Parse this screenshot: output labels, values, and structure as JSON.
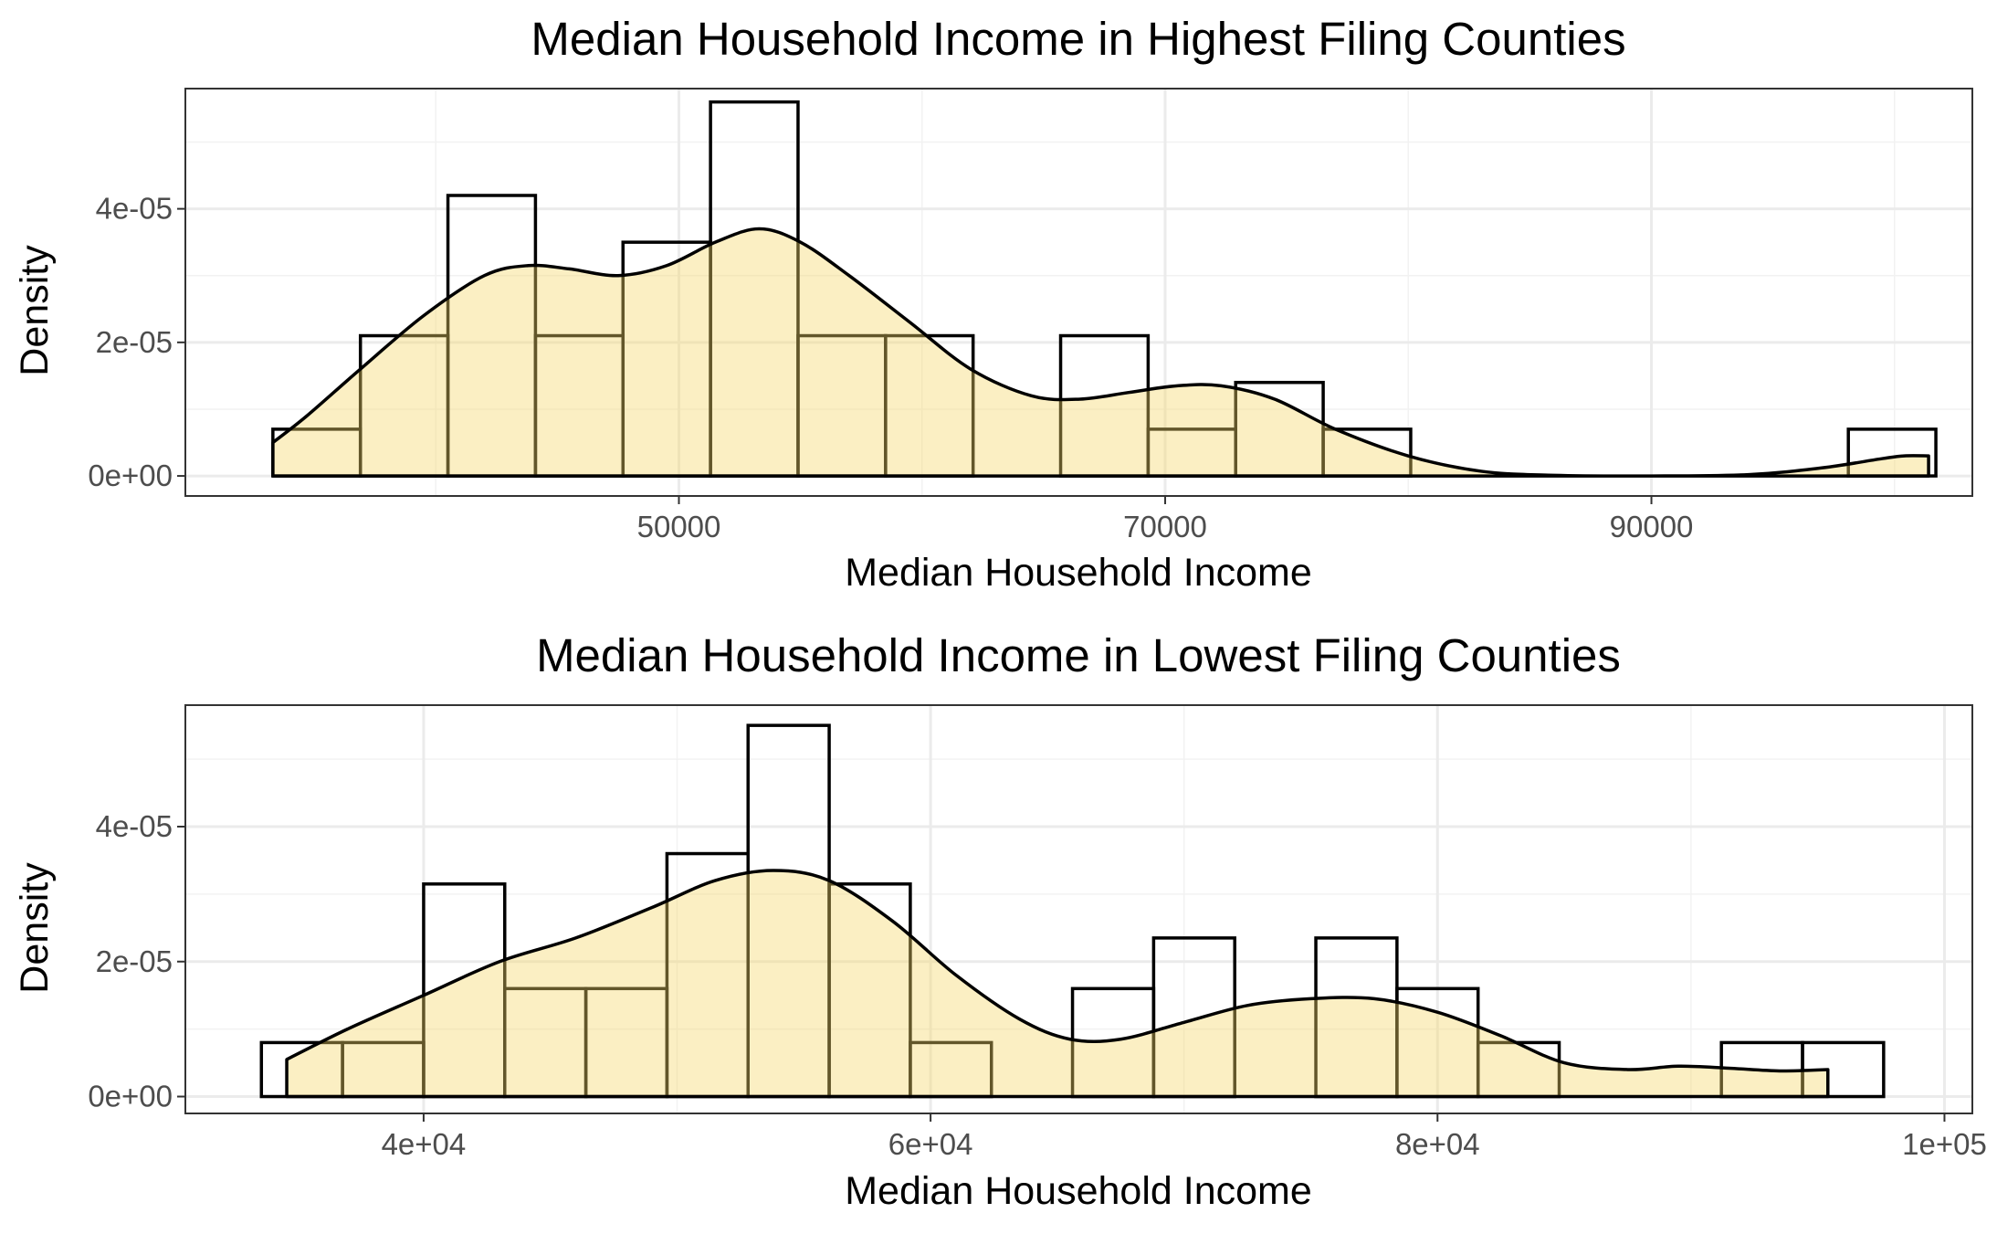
{
  "colors": {
    "fill": "#F5D66A",
    "fill_opacity": 0.4,
    "outline": "#000000",
    "grid_major": "#ebebeb",
    "grid_minor": "#f2f2f2",
    "panel_border": "#333333",
    "tick_text": "#4d4d4d"
  },
  "chart_data": [
    {
      "type": "histogram",
      "title": "Median Household Income in Highest Filing Counties",
      "xlabel": "Median Household Income",
      "ylabel": "Density",
      "xlim": [
        29700,
        103200
      ],
      "ylim": [
        -3e-06,
        5.8e-05
      ],
      "x_ticks": [
        50000,
        70000,
        90000
      ],
      "x_tick_labels": [
        "50000",
        "70000",
        "90000"
      ],
      "x_minor_ticks": [
        40000,
        60000,
        80000,
        100000
      ],
      "y_ticks": [
        0,
        2e-05,
        4e-05
      ],
      "y_tick_labels": [
        "0e+00",
        "2e-05",
        "4e-05"
      ],
      "y_minor_ticks": [
        1e-05,
        3e-05,
        5e-05
      ],
      "grid": true,
      "bins": [
        {
          "x0": 33300,
          "x1": 36900,
          "density": 7e-06
        },
        {
          "x0": 36900,
          "x1": 40500,
          "density": 2.1e-05
        },
        {
          "x0": 40500,
          "x1": 44100,
          "density": 4.2e-05
        },
        {
          "x0": 44100,
          "x1": 47700,
          "density": 2.1e-05
        },
        {
          "x0": 47700,
          "x1": 51300,
          "density": 3.5e-05
        },
        {
          "x0": 51300,
          "x1": 54900,
          "density": 5.6e-05
        },
        {
          "x0": 54900,
          "x1": 58500,
          "density": 2.1e-05
        },
        {
          "x0": 58500,
          "x1": 62100,
          "density": 2.1e-05
        },
        {
          "x0": 62100,
          "x1": 65700,
          "density": 0
        },
        {
          "x0": 65700,
          "x1": 69300,
          "density": 2.1e-05
        },
        {
          "x0": 69300,
          "x1": 72900,
          "density": 7e-06
        },
        {
          "x0": 72900,
          "x1": 76500,
          "density": 1.4e-05
        },
        {
          "x0": 76500,
          "x1": 80100,
          "density": 7e-06
        },
        {
          "x0": 80100,
          "x1": 83700,
          "density": 0
        },
        {
          "x0": 83700,
          "x1": 87300,
          "density": 0
        },
        {
          "x0": 87300,
          "x1": 90900,
          "density": 0
        },
        {
          "x0": 90900,
          "x1": 94500,
          "density": 0
        },
        {
          "x0": 94500,
          "x1": 98100,
          "density": 0
        },
        {
          "x0": 98100,
          "x1": 101700,
          "density": 7e-06
        }
      ],
      "density_curve": [
        {
          "x": 33300,
          "y": 5e-06
        },
        {
          "x": 34700,
          "y": 9e-06
        },
        {
          "x": 36900,
          "y": 1.6e-05
        },
        {
          "x": 39500,
          "y": 2.4e-05
        },
        {
          "x": 42000,
          "y": 3e-05
        },
        {
          "x": 43800,
          "y": 3.15e-05
        },
        {
          "x": 45500,
          "y": 3.1e-05
        },
        {
          "x": 47500,
          "y": 3e-05
        },
        {
          "x": 49500,
          "y": 3.15e-05
        },
        {
          "x": 51500,
          "y": 3.5e-05
        },
        {
          "x": 53300,
          "y": 3.7e-05
        },
        {
          "x": 55000,
          "y": 3.5e-05
        },
        {
          "x": 57000,
          "y": 3e-05
        },
        {
          "x": 59500,
          "y": 2.3e-05
        },
        {
          "x": 62000,
          "y": 1.6e-05
        },
        {
          "x": 64500,
          "y": 1.2e-05
        },
        {
          "x": 66500,
          "y": 1.15e-05
        },
        {
          "x": 68500,
          "y": 1.25e-05
        },
        {
          "x": 70500,
          "y": 1.35e-05
        },
        {
          "x": 72300,
          "y": 1.35e-05
        },
        {
          "x": 74500,
          "y": 1.15e-05
        },
        {
          "x": 77000,
          "y": 7e-06
        },
        {
          "x": 80000,
          "y": 3e-06
        },
        {
          "x": 83000,
          "y": 7e-07
        },
        {
          "x": 86000,
          "y": 1e-07
        },
        {
          "x": 90000,
          "y": 0
        },
        {
          "x": 94000,
          "y": 2e-07
        },
        {
          "x": 97000,
          "y": 1.2e-06
        },
        {
          "x": 99500,
          "y": 2.6e-06
        },
        {
          "x": 100400,
          "y": 3e-06
        },
        {
          "x": 101400,
          "y": 3e-06
        }
      ]
    },
    {
      "type": "histogram",
      "title": "Median Household Income in Lowest Filing Counties",
      "xlabel": "Median Household Income",
      "ylabel": "Density",
      "xlim": [
        30600,
        101100
      ],
      "ylim": [
        -2.5e-06,
        5.8e-05
      ],
      "x_ticks": [
        40000,
        60000,
        80000,
        100000
      ],
      "x_tick_labels": [
        "4e+04",
        "6e+04",
        "8e+04",
        "1e+05"
      ],
      "x_minor_ticks": [
        30000,
        50000,
        70000,
        90000
      ],
      "y_ticks": [
        0,
        2e-05,
        4e-05
      ],
      "y_tick_labels": [
        "0e+00",
        "2e-05",
        "4e-05"
      ],
      "y_minor_ticks": [
        1e-05,
        3e-05,
        5e-05
      ],
      "grid": true,
      "bins": [
        {
          "x0": 33600,
          "x1": 36800,
          "density": 8e-06
        },
        {
          "x0": 36800,
          "x1": 40000,
          "density": 8e-06
        },
        {
          "x0": 40000,
          "x1": 43200,
          "density": 3.15e-05
        },
        {
          "x0": 43200,
          "x1": 46400,
          "density": 1.6e-05
        },
        {
          "x0": 46400,
          "x1": 49600,
          "density": 1.6e-05
        },
        {
          "x0": 49600,
          "x1": 52800,
          "density": 3.6e-05
        },
        {
          "x0": 52800,
          "x1": 56000,
          "density": 5.5e-05
        },
        {
          "x0": 56000,
          "x1": 59200,
          "density": 3.15e-05
        },
        {
          "x0": 59200,
          "x1": 62400,
          "density": 8e-06
        },
        {
          "x0": 62400,
          "x1": 65600,
          "density": 0
        },
        {
          "x0": 65600,
          "x1": 68800,
          "density": 1.6e-05
        },
        {
          "x0": 68800,
          "x1": 72000,
          "density": 2.35e-05
        },
        {
          "x0": 72000,
          "x1": 75200,
          "density": 0
        },
        {
          "x0": 75200,
          "x1": 78400,
          "density": 2.35e-05
        },
        {
          "x0": 78400,
          "x1": 81600,
          "density": 1.6e-05
        },
        {
          "x0": 81600,
          "x1": 84800,
          "density": 8e-06
        },
        {
          "x0": 84800,
          "x1": 88000,
          "density": 0
        },
        {
          "x0": 88000,
          "x1": 91200,
          "density": 0
        },
        {
          "x0": 91200,
          "x1": 94400,
          "density": 8e-06
        },
        {
          "x0": 94400,
          "x1": 97600,
          "density": 8e-06
        }
      ],
      "density_curve": [
        {
          "x": 34600,
          "y": 5.5e-06
        },
        {
          "x": 37000,
          "y": 1e-05
        },
        {
          "x": 40000,
          "y": 1.5e-05
        },
        {
          "x": 43000,
          "y": 2e-05
        },
        {
          "x": 46000,
          "y": 2.35e-05
        },
        {
          "x": 49000,
          "y": 2.8e-05
        },
        {
          "x": 51500,
          "y": 3.2e-05
        },
        {
          "x": 53800,
          "y": 3.35e-05
        },
        {
          "x": 56000,
          "y": 3.2e-05
        },
        {
          "x": 58500,
          "y": 2.6e-05
        },
        {
          "x": 61000,
          "y": 1.8e-05
        },
        {
          "x": 63500,
          "y": 1.15e-05
        },
        {
          "x": 65500,
          "y": 8.5e-06
        },
        {
          "x": 67500,
          "y": 8.5e-06
        },
        {
          "x": 70000,
          "y": 1.1e-05
        },
        {
          "x": 72500,
          "y": 1.35e-05
        },
        {
          "x": 75000,
          "y": 1.45e-05
        },
        {
          "x": 77500,
          "y": 1.45e-05
        },
        {
          "x": 80000,
          "y": 1.25e-05
        },
        {
          "x": 82500,
          "y": 9e-06
        },
        {
          "x": 85000,
          "y": 5e-06
        },
        {
          "x": 87500,
          "y": 4e-06
        },
        {
          "x": 89500,
          "y": 4.5e-06
        },
        {
          "x": 91500,
          "y": 4.2e-06
        },
        {
          "x": 93500,
          "y": 3.8e-06
        },
        {
          "x": 95400,
          "y": 4e-06
        }
      ]
    }
  ]
}
